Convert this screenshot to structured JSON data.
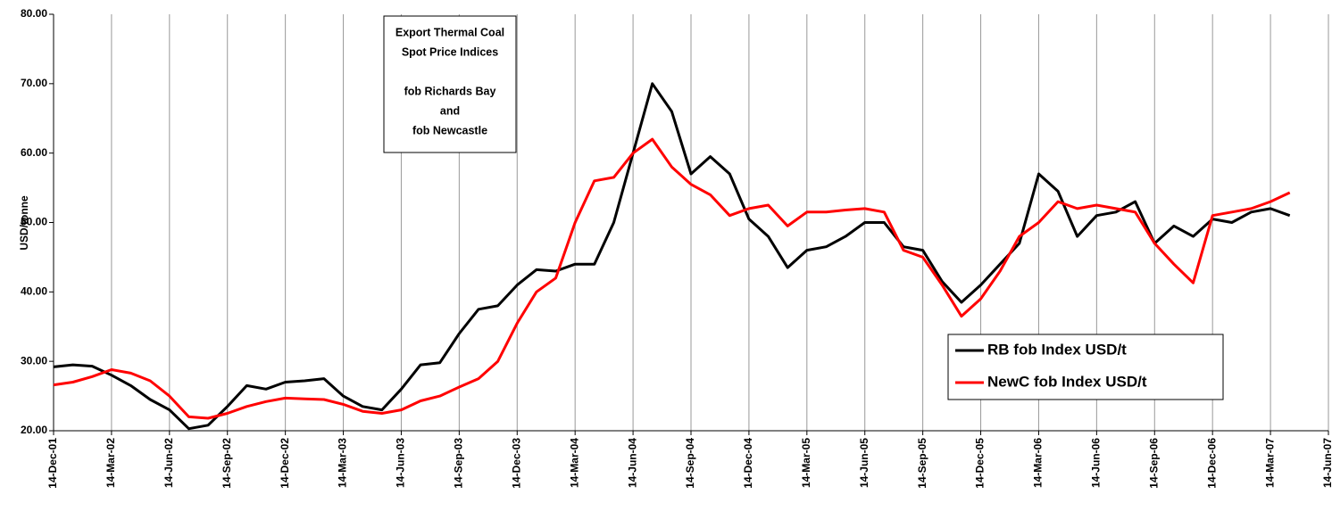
{
  "chart_data": {
    "type": "line",
    "y_label": "USD/tonne",
    "annotation": [
      "Export Thermal Coal",
      "Spot Price Indices",
      "fob Richards Bay",
      "and",
      "fob Newcastle"
    ],
    "x": [
      "14-Dec-01",
      "14-Jan-02",
      "14-Feb-02",
      "14-Mar-02",
      "14-Apr-02",
      "14-May-02",
      "14-Jun-02",
      "14-Jul-02",
      "14-Aug-02",
      "14-Sep-02",
      "14-Oct-02",
      "14-Nov-02",
      "14-Dec-02",
      "14-Jan-03",
      "14-Feb-03",
      "14-Mar-03",
      "14-Apr-03",
      "14-May-03",
      "14-Jun-03",
      "14-Jul-03",
      "14-Aug-03",
      "14-Sep-03",
      "14-Oct-03",
      "14-Nov-03",
      "14-Dec-03",
      "14-Jan-04",
      "14-Feb-04",
      "14-Mar-04",
      "14-Apr-04",
      "14-May-04",
      "14-Jun-04",
      "14-Jul-04",
      "14-Aug-04",
      "14-Sep-04",
      "14-Oct-04",
      "14-Nov-04",
      "14-Dec-04",
      "14-Jan-05",
      "14-Feb-05",
      "14-Mar-05",
      "14-Apr-05",
      "14-May-05",
      "14-Jun-05",
      "14-Jul-05",
      "14-Aug-05",
      "14-Sep-05",
      "14-Oct-05",
      "14-Nov-05",
      "14-Dec-05",
      "14-Jan-06",
      "14-Feb-06",
      "14-Mar-06",
      "14-Apr-06",
      "14-May-06",
      "14-Jun-06",
      "14-Jul-06",
      "14-Aug-06",
      "14-Sep-06",
      "14-Oct-06",
      "14-Nov-06",
      "14-Dec-06",
      "14-Jan-07",
      "14-Feb-07",
      "14-Mar-07",
      "14-Apr-07"
    ],
    "series": [
      {
        "name": "RB fob Index USD/t",
        "color": "#000000",
        "values": [
          29.2,
          29.5,
          29.3,
          28.0,
          26.5,
          24.5,
          23.0,
          20.3,
          20.8,
          23.5,
          26.5,
          26.0,
          27.0,
          27.2,
          27.5,
          25.0,
          23.5,
          23.0,
          26.0,
          29.5,
          29.8,
          34.0,
          37.5,
          38.0,
          41.0,
          43.2,
          43.0,
          44.0,
          44.0,
          50.0,
          60.0,
          70.0,
          66.0,
          57.0,
          59.5,
          57.0,
          50.5,
          48.0,
          43.5,
          46.0,
          46.5,
          48.0,
          50.0,
          50.0,
          46.5,
          46.0,
          41.5,
          38.5,
          41.0,
          44.0,
          47.0,
          57.0,
          54.5,
          48.0,
          51.0,
          51.5,
          53.0,
          47.0,
          49.5,
          48.0,
          50.5,
          50.0,
          51.5,
          52.0,
          51.0
        ]
      },
      {
        "name": "NewC fob Index USD/t",
        "color": "#ff0000",
        "values": [
          26.6,
          27.0,
          27.8,
          28.8,
          28.3,
          27.2,
          25.0,
          22.0,
          21.8,
          22.5,
          23.5,
          24.2,
          24.7,
          24.6,
          24.5,
          23.8,
          22.8,
          22.5,
          23.0,
          24.3,
          25.0,
          26.3,
          27.5,
          30.0,
          35.5,
          40.0,
          42.0,
          50.0,
          56.0,
          56.5,
          60.0,
          62.0,
          58.0,
          55.5,
          54.0,
          51.0,
          52.0,
          52.5,
          49.5,
          51.5,
          51.5,
          51.8,
          52.0,
          51.5,
          46.0,
          45.0,
          41.0,
          36.5,
          39.0,
          43.0,
          48.0,
          50.0,
          53.0,
          52.0,
          52.5,
          52.0,
          51.5,
          47.0,
          44.0,
          41.3,
          51.0,
          51.5,
          52.0,
          53.0,
          54.3
        ]
      }
    ],
    "xlim": [
      "14-Dec-01",
      "14-Jun-07"
    ],
    "xticks": [
      "14-Dec-01",
      "14-Mar-02",
      "14-Jun-02",
      "14-Sep-02",
      "14-Dec-02",
      "14-Mar-03",
      "14-Jun-03",
      "14-Sep-03",
      "14-Dec-03",
      "14-Mar-04",
      "14-Jun-04",
      "14-Sep-04",
      "14-Dec-04",
      "14-Mar-05",
      "14-Jun-05",
      "14-Sep-05",
      "14-Dec-05",
      "14-Mar-06",
      "14-Jun-06",
      "14-Sep-06",
      "14-Dec-06",
      "14-Mar-07",
      "14-Jun-07"
    ],
    "ylim": [
      20,
      80
    ],
    "yticks": [
      {
        "value": 20,
        "label": "20.00"
      },
      {
        "value": 30,
        "label": "30.00"
      },
      {
        "value": 40,
        "label": "40.00"
      },
      {
        "value": 50,
        "label": "50.00"
      },
      {
        "value": 60,
        "label": "60.00"
      },
      {
        "value": 70,
        "label": "70.00"
      },
      {
        "value": 80,
        "label": "80.00"
      }
    ],
    "grid": "x"
  }
}
